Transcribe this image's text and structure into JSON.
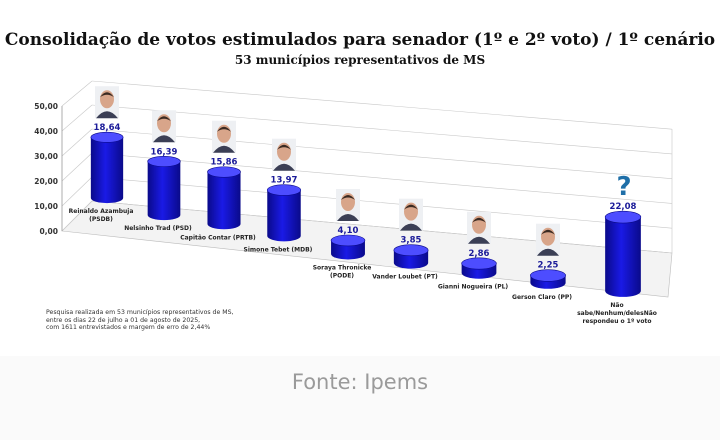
{
  "source_text": "Fonte: Ipems",
  "note_lines": [
    "Pesquisa realizada em 53 municípios representativos de MS,",
    "entre os dias 22 de julho a 01 de agosto de 2025,",
    "com 1611 entrevistados e margem de erro de 2,44%"
  ],
  "colors": {
    "bar": "#1a1ae6",
    "bar_dark": "#0a0a8a",
    "bar_top": "#4d4dff",
    "value_text": "#1b1b99",
    "question_mark": "#1f6fa8"
  },
  "chart_data": {
    "type": "bar",
    "title": "Consolidação de votos estimulados para senador (1º e 2º voto)  / 1º cenário",
    "subtitle": "53 municípios representativos de  MS",
    "ylim": [
      0,
      50
    ],
    "y_ticks": [
      "0,00",
      "10,00",
      "20,00",
      "30,00",
      "40,00",
      "50,00"
    ],
    "grid": true,
    "categories": [
      [
        "Reinaldo Azambuja",
        "(PSDB)"
      ],
      [
        "Nelsinho Trad (PSD)"
      ],
      [
        "Capitão Contar (PRTB)"
      ],
      [
        "Simone Tebet (MDB)"
      ],
      [
        "Soraya Thronicke",
        "(PODE)"
      ],
      [
        "Vander Loubet (PT)"
      ],
      [
        "Gianni Nogueira (PL)"
      ],
      [
        "Gerson Claro (PP)"
      ],
      [
        "Não",
        "sabe/Nenhum/delesNão",
        "respondeu o 1º voto"
      ]
    ],
    "values": [
      18.64,
      16.39,
      15.86,
      13.97,
      4.1,
      3.85,
      2.86,
      2.25,
      22.08
    ],
    "value_labels": [
      "18,64",
      "16,39",
      "15,86",
      "13,97",
      "4,10",
      "3,85",
      "2,86",
      "2,25",
      "22,08"
    ],
    "icons": [
      "person-photo-icon",
      "person-photo-icon",
      "person-photo-icon",
      "person-photo-icon",
      "person-photo-icon",
      "person-photo-icon",
      "person-photo-icon",
      "person-photo-icon",
      "question-mark-icon"
    ]
  }
}
